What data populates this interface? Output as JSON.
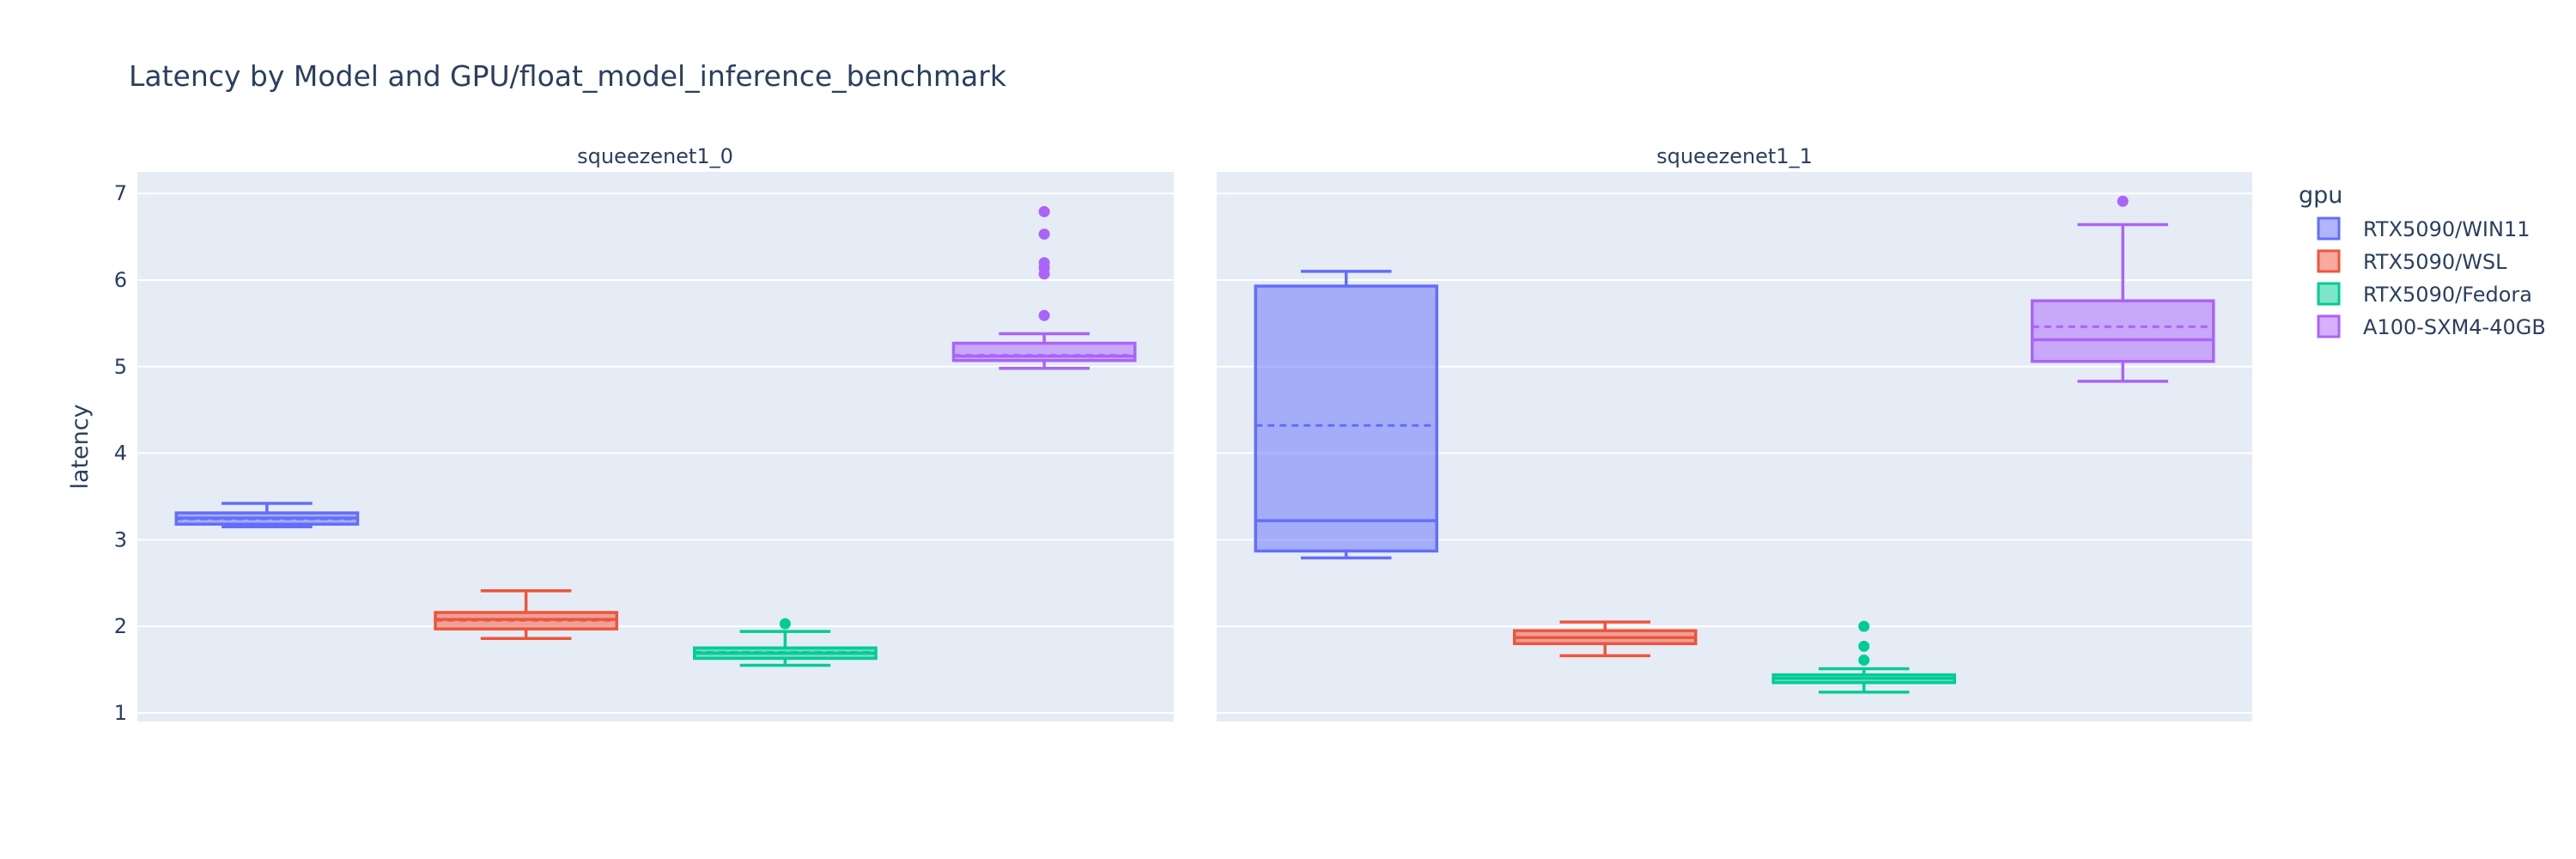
{
  "chart_data": {
    "type": "box",
    "title": "Latency by Model and GPU/float_model_inference_benchmark",
    "ylabel": "latency",
    "ylim": [
      0.9,
      7.25
    ],
    "yticks": [
      1,
      2,
      3,
      4,
      5,
      6,
      7
    ],
    "grid": true,
    "background": "#E5ECF6",
    "legend": {
      "title": "gpu",
      "placement": "right"
    },
    "facets": [
      "squeezenet1_0",
      "squeezenet1_1"
    ],
    "series": [
      {
        "name": "RTX5090/WIN11",
        "color": "#636EFA",
        "fill": "rgba(99,110,250,0.5)"
      },
      {
        "name": "RTX5090/WSL",
        "color": "#EF553B",
        "fill": "rgba(239,85,59,0.5)"
      },
      {
        "name": "RTX5090/Fedora",
        "color": "#00CC96",
        "fill": "rgba(0,204,150,0.5)"
      },
      {
        "name": "A100-SXM4-40GB",
        "color": "#AB63FA",
        "fill": "rgba(171,99,250,0.5)"
      }
    ],
    "boxes": [
      {
        "facet": 0,
        "series": 0,
        "min": 3.15,
        "q1": 3.18,
        "median": 3.25,
        "mean": 3.24,
        "q3": 3.31,
        "max": 3.42,
        "outliers": []
      },
      {
        "facet": 0,
        "series": 1,
        "min": 1.86,
        "q1": 1.97,
        "median": 2.08,
        "mean": 2.07,
        "q3": 2.16,
        "max": 2.41,
        "outliers": []
      },
      {
        "facet": 0,
        "series": 2,
        "min": 1.55,
        "q1": 1.63,
        "median": 1.69,
        "mean": 1.7,
        "q3": 1.75,
        "max": 1.94,
        "outliers": [
          2.03
        ]
      },
      {
        "facet": 0,
        "series": 3,
        "min": 4.98,
        "q1": 5.07,
        "median": 5.12,
        "mean": 5.13,
        "q3": 5.27,
        "max": 5.38,
        "outliers": [
          5.59,
          6.07,
          6.14,
          6.2,
          6.53,
          6.79
        ]
      },
      {
        "facet": 1,
        "series": 0,
        "min": 2.79,
        "q1": 2.87,
        "median": 3.22,
        "mean": 4.32,
        "q3": 5.93,
        "max": 6.1,
        "outliers": []
      },
      {
        "facet": 1,
        "series": 1,
        "min": 1.66,
        "q1": 1.8,
        "median": 1.87,
        "mean": 1.87,
        "q3": 1.95,
        "max": 2.05,
        "outliers": []
      },
      {
        "facet": 1,
        "series": 2,
        "min": 1.24,
        "q1": 1.35,
        "median": 1.4,
        "mean": 1.4,
        "q3": 1.44,
        "max": 1.51,
        "outliers": [
          1.61,
          1.77,
          2.0
        ]
      },
      {
        "facet": 1,
        "series": 3,
        "min": 4.83,
        "q1": 5.06,
        "median": 5.31,
        "mean": 5.46,
        "q3": 5.76,
        "max": 6.64,
        "outliers": [
          6.91
        ]
      }
    ]
  }
}
